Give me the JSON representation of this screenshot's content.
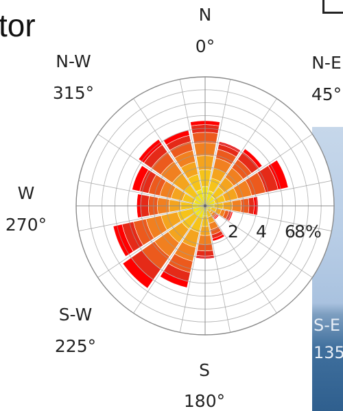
{
  "page": {
    "partial_title": "tor",
    "photo_labels": [
      "S-E",
      "135°"
    ]
  },
  "chart_data": {
    "type": "windrose",
    "directions_deg": [
      0,
      22.5,
      45,
      67.5,
      90,
      112.5,
      135,
      157.5,
      180,
      202.5,
      225,
      247.5,
      270,
      292.5,
      315,
      337.5
    ],
    "speed_bin_colors": [
      "#f2e418",
      "#f6c31a",
      "#f4a41e",
      "#f18020",
      "#ec5a1d",
      "#e52a18",
      "#ff0000"
    ],
    "cumulative_frequency_pct": [
      [
        1.5,
        2.8,
        3.9,
        4.9,
        5.7,
        6.3,
        6.6
      ],
      [
        1.2,
        2.2,
        3.0,
        3.8,
        4.5,
        4.9,
        5.1
      ],
      [
        0.9,
        1.8,
        2.7,
        3.6,
        4.4,
        5.1,
        5.4
      ],
      [
        0.8,
        1.6,
        2.6,
        3.7,
        4.8,
        5.8,
        6.6
      ],
      [
        0.7,
        1.4,
        2.1,
        2.8,
        3.4,
        3.8,
        4.1
      ],
      [
        0.5,
        0.9,
        1.3,
        1.6,
        1.9,
        2.1,
        2.2
      ],
      [
        0.3,
        0.6,
        0.8,
        1.0,
        1.1,
        1.2,
        1.3
      ],
      [
        0.4,
        0.9,
        1.4,
        1.9,
        2.3,
        2.6,
        2.8
      ],
      [
        0.8,
        1.6,
        2.3,
        3.0,
        3.5,
        3.9,
        4.1
      ],
      [
        1.0,
        2.1,
        3.3,
        4.4,
        5.3,
        6.0,
        6.5
      ],
      [
        1.0,
        2.2,
        3.5,
        4.8,
        6.0,
        7.0,
        7.8
      ],
      [
        1.0,
        2.2,
        3.5,
        4.7,
        5.7,
        6.6,
        7.3
      ],
      [
        1.0,
        1.9,
        2.8,
        3.7,
        4.4,
        5.0,
        5.3
      ],
      [
        0.9,
        1.8,
        2.7,
        3.6,
        4.5,
        5.2,
        5.8
      ],
      [
        1.0,
        2.0,
        3.1,
        4.2,
        5.1,
        5.8,
        6.3
      ],
      [
        1.3,
        2.5,
        3.5,
        4.4,
        5.1,
        5.6,
        6.0
      ]
    ],
    "r_ticks": [
      2,
      4,
      6,
      8
    ],
    "r_tick_labels": [
      "2",
      "4",
      "6",
      "8%"
    ],
    "r_max": 10,
    "grid": true,
    "direction_labels": [
      {
        "name": "N",
        "angle": "0°",
        "deg": 0
      },
      {
        "name": "N-E",
        "angle": "45°",
        "deg": 45
      },
      {
        "name": "W",
        "angle": "270°",
        "deg": 270
      },
      {
        "name": "N-W",
        "angle": "315°",
        "deg": 315
      },
      {
        "name": "S-W",
        "angle": "225°",
        "deg": 225
      },
      {
        "name": "S",
        "angle": "180°",
        "deg": 180
      }
    ]
  }
}
